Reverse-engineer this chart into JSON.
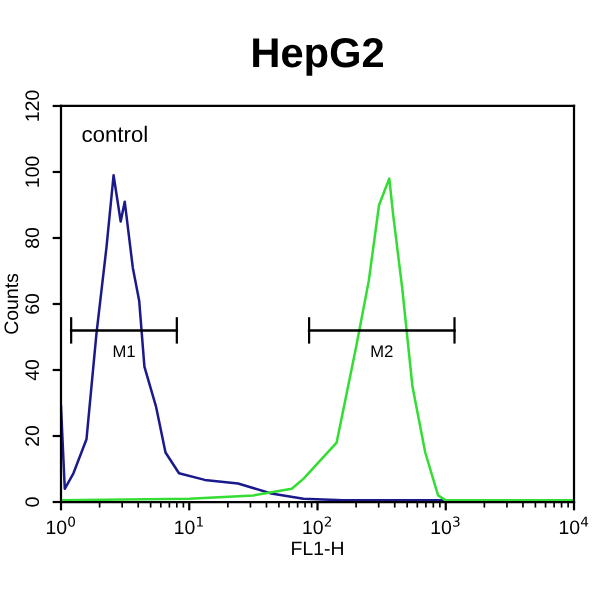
{
  "chart_data": {
    "type": "line",
    "title": "HepG2",
    "xlabel": "FL1-H",
    "ylabel": "Counts",
    "log": "x",
    "xlim": [
      1,
      10000
    ],
    "xticks": [
      {
        "value": 1,
        "label": "10$^{0}$"
      },
      {
        "value": 10,
        "label": "10$^{1}$"
      },
      {
        "value": 100,
        "label": "10$^{2}$"
      },
      {
        "value": 1000,
        "label": "10$^{3}$"
      },
      {
        "value": 10000,
        "label": "10$^{4}$"
      }
    ],
    "ylim": [
      0,
      120
    ],
    "yticks": [
      0,
      20,
      40,
      60,
      80,
      100,
      120
    ],
    "grid": false,
    "legend": false,
    "annotations": [
      "control",
      {
        "text": "M1",
        "x": 3.1,
        "y": 52
      },
      {
        "text": "M2",
        "x": 317,
        "y": 52
      }
    ],
    "series": [
      {
        "color": "#1a1a8c",
        "x": [
          1.0,
          1.07,
          1.25,
          1.58,
          1.89,
          2.26,
          2.57,
          2.92,
          3.14,
          3.63,
          4.07,
          4.47,
          5.5,
          6.53,
          8.32,
          13.2,
          24,
          43.6,
          77.6,
          158,
          1000,
          10000
        ],
        "values": [
          29,
          4,
          8.7,
          19,
          51,
          77,
          99,
          85,
          91,
          71,
          61,
          41,
          29,
          15,
          8.7,
          6.7,
          5.6,
          2.6,
          1,
          0.5,
          0.5,
          0.5
        ]
      },
      {
        "color": "#33dd33",
        "x": [
          1,
          10,
          31.6,
          63,
          77.6,
          141,
          200,
          251,
          302,
          363,
          389,
          457,
          550,
          692,
          871,
          1000,
          10000
        ],
        "values": [
          0.5,
          1,
          2,
          4,
          7,
          18,
          47,
          67,
          90,
          98,
          87,
          65,
          35,
          15,
          2,
          0.5,
          0.5
        ]
      },
      {
        "color": "#000000",
        "x": [
          1.2,
          8
        ],
        "values": [
          52,
          52
        ],
        "errors": [
          4,
          4
        ]
      },
      {
        "color": "#000000",
        "x": [
          86,
          1170
        ],
        "values": [
          52,
          52
        ],
        "errors": [
          4,
          4
        ]
      }
    ]
  }
}
